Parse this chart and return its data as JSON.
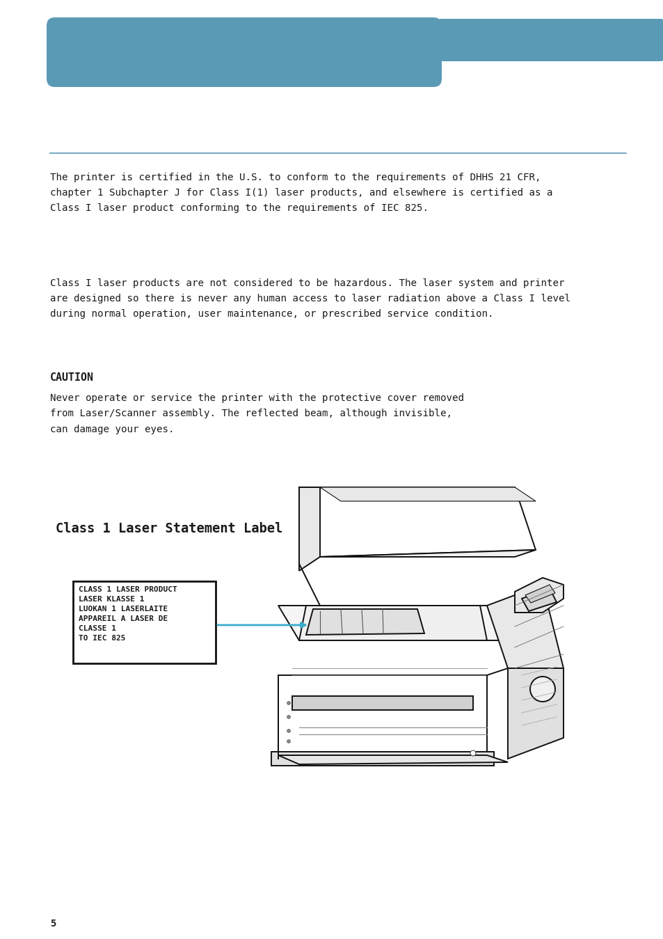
{
  "bg_color": "#ffffff",
  "header_color": "#5b9ab5",
  "text_color": "#1a1a1a",
  "divider_color": "#5b9ab5",
  "arrow_color": "#3aadcc",
  "para1": "The printer is certified in the U.S. to conform to the requirements of DHHS 21 CFR,\nchapter 1 Subchapter J for Class I(1) laser products, and elsewhere is certified as a\nClass I laser product conforming to the requirements of IEC 825.",
  "para2": "Class I laser products are not considered to be hazardous. The laser system and printer\nare designed so there is never any human access to laser radiation above a Class I level\nduring normal operation, user maintenance, or prescribed service condition.",
  "caution_label": "CAUTION",
  "caution_text": "Never operate or service the printer with the protective cover removed\nfrom Laser/Scanner assembly. The reflected beam, although invisible,\ncan damage your eyes.",
  "class1_label": "Class 1 Laser Statement Label",
  "box_label_lines": [
    "CLASS 1 LASER PRODUCT",
    "LASER KLASSE 1",
    "LUOKAN 1 LASERLAITE",
    "APPAREIL A LASER DE",
    "CLASSE 1",
    "TO IEC 825"
  ],
  "page_number": "5"
}
